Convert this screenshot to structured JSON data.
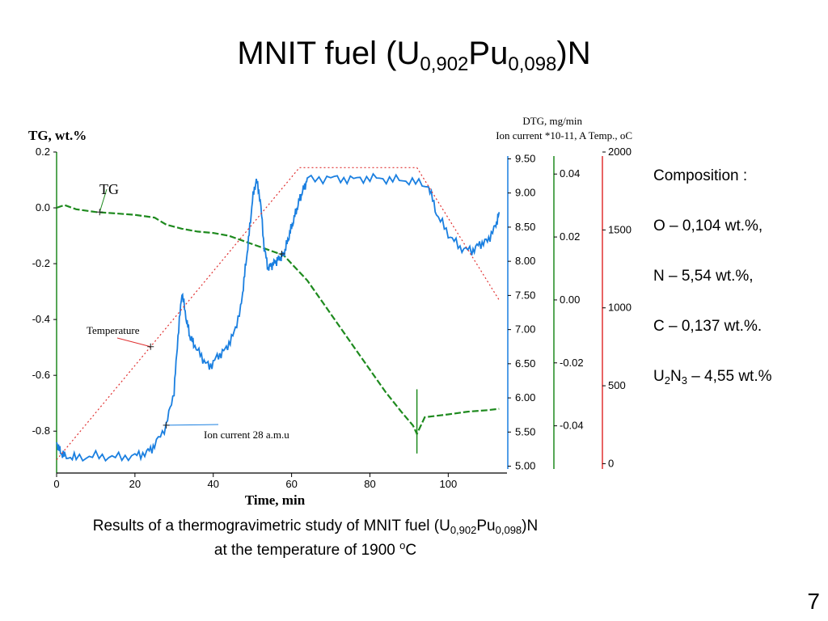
{
  "slide": {
    "title_main": "MNIT fuel (U",
    "title_sub1": "0,902",
    "title_mid": "Pu",
    "title_sub2": "0,098",
    "title_end": ")N",
    "page_number": "7"
  },
  "composition": {
    "heading": "Composition :",
    "O": "O – 0,104 wt.%,",
    "N": "N – 5,54 wt.%,",
    "C": "C – 0,137 wt.%.",
    "U2N3_pre": "U",
    "U2N3_sub1": "2",
    "U2N3_mid": "N",
    "U2N3_sub2": "3",
    "U2N3_post": " – 4,55 wt.%"
  },
  "caption": {
    "line1_a": "Results of a thermogravimetric study of MNIT fuel (U",
    "line1_sub1": "0,902",
    "line1_b": "Pu",
    "line1_sub2": "0,098",
    "line1_c": ")N",
    "line2_a": "at the temperature of 1900 ",
    "line2_sup": "o",
    "line2_b": "C"
  },
  "colors": {
    "tg": "#1e8a1e",
    "ion": "#1a7fe0",
    "temp": "#e03030",
    "dtg_axis": "#1e8a1e",
    "ion_axis": "#1a7fe0",
    "temp_axis": "#e03030"
  },
  "chart_data": {
    "type": "line",
    "xlabel": "Time, min",
    "left_axis_label": "TG, wt.%",
    "right_axis_label_line1": "DTG, mg/min",
    "right_axis_label_line2": "Ion current *10-11, A  Temp., oC",
    "xlim": [
      0,
      115
    ],
    "x_ticks": [
      "0",
      "20",
      "40",
      "60",
      "80",
      "100"
    ],
    "tg_axis": {
      "ylim": [
        -0.95,
        0.2
      ],
      "ticks": [
        "0.2",
        "0.0",
        "-0.2",
        "-0.4",
        "-0.6",
        "-0.8"
      ]
    },
    "ion_axis": {
      "ylim": [
        4.9,
        9.6
      ],
      "ticks": [
        "9.50",
        "9.00",
        "8.50",
        "8.00",
        "7.50",
        "7.00",
        "6.50",
        "6.00",
        "5.50",
        "5.00"
      ]
    },
    "dtg_axis": {
      "ylim": [
        -0.055,
        0.047
      ],
      "ticks": [
        "0.04",
        "0.02",
        "0.00",
        "-0.02",
        "-0.04"
      ]
    },
    "temp_axis": {
      "ylim": [
        -60,
        2000
      ],
      "ticks": [
        "2000",
        "1500",
        "1000",
        "500",
        "0"
      ]
    },
    "annotations": {
      "tg": "TG",
      "temperature": "Temperature",
      "ion": "Ion current 28 a.m.u"
    },
    "series": [
      {
        "name": "TG",
        "axis": "tg",
        "x": [
          0,
          2,
          5,
          10,
          15,
          20,
          25,
          28,
          32,
          36,
          40,
          44,
          48,
          52,
          55,
          58,
          60,
          64,
          68,
          72,
          76,
          80,
          84,
          88,
          91,
          92,
          94,
          100,
          105,
          110,
          113
        ],
        "y": [
          0.0,
          0.01,
          -0.005,
          -0.015,
          -0.02,
          -0.025,
          -0.035,
          -0.06,
          -0.075,
          -0.085,
          -0.09,
          -0.1,
          -0.12,
          -0.14,
          -0.155,
          -0.17,
          -0.2,
          -0.26,
          -0.34,
          -0.42,
          -0.5,
          -0.58,
          -0.66,
          -0.73,
          -0.78,
          -0.81,
          -0.75,
          -0.74,
          -0.73,
          -0.725,
          -0.72
        ]
      },
      {
        "name": "Ion current 28 a.m.u",
        "axis": "ion",
        "x": [
          0,
          1,
          2,
          5,
          10,
          15,
          20,
          23,
          25,
          28,
          30,
          31,
          32,
          33,
          34,
          35,
          37,
          39,
          41,
          43,
          45,
          47,
          48,
          49,
          50,
          51,
          52,
          53,
          54,
          55,
          56,
          57,
          58,
          59,
          60,
          61,
          62,
          63,
          64,
          70,
          75,
          80,
          85,
          90,
          95,
          97,
          100,
          103,
          106,
          108,
          110,
          112,
          113
        ],
        "y": [
          5.35,
          5.2,
          5.15,
          5.12,
          5.15,
          5.13,
          5.15,
          5.2,
          5.3,
          5.6,
          6.1,
          6.9,
          7.55,
          7.2,
          6.9,
          6.8,
          6.6,
          6.45,
          6.6,
          6.7,
          6.9,
          7.3,
          7.8,
          8.3,
          8.9,
          9.2,
          8.9,
          8.2,
          7.9,
          7.95,
          8.0,
          8.05,
          8.1,
          8.3,
          8.5,
          8.7,
          8.9,
          9.05,
          9.2,
          9.22,
          9.2,
          9.22,
          9.2,
          9.18,
          9.1,
          8.7,
          8.4,
          8.2,
          8.15,
          8.25,
          8.3,
          8.5,
          8.72
        ]
      },
      {
        "name": "Temperature",
        "axis": "temp",
        "x": [
          0,
          62,
          92,
          113
        ],
        "y": [
          25,
          1900,
          1900,
          1050
        ]
      }
    ]
  }
}
